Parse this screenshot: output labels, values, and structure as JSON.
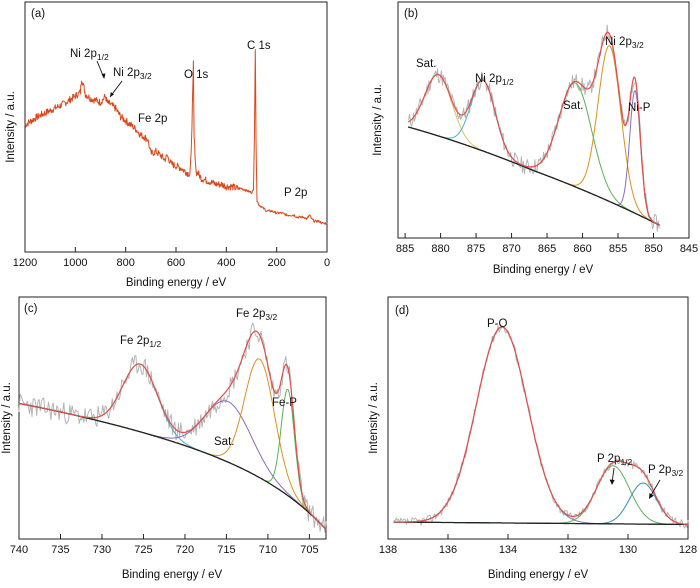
{
  "chart_data": [
    {
      "panel": "(a)",
      "type": "line",
      "xlabel": "Binding energy / eV",
      "ylabel": "Intensity / a.u.",
      "xlim": [
        1200,
        0
      ],
      "ylim": [
        0,
        1
      ],
      "x_reversed": true,
      "y_ticks_shown": false,
      "xticks": [
        1200,
        1000,
        800,
        600,
        400,
        200,
        0
      ],
      "grid": false,
      "series": [
        {
          "color": "#d9481c",
          "x": [
            1200,
            1150,
            1100,
            1050,
            1000,
            980,
            975,
            960,
            940,
            920,
            900,
            880,
            875,
            860,
            840,
            820,
            800,
            780,
            760,
            740,
            725,
            712,
            700,
            680,
            660,
            645,
            635,
            620,
            600,
            580,
            560,
            545,
            540,
            533,
            531,
            528,
            520,
            510,
            500,
            480,
            460,
            440,
            420,
            400,
            380,
            360,
            340,
            320,
            300,
            292,
            288,
            285,
            282,
            278,
            270,
            260,
            240,
            220,
            200,
            180,
            160,
            140,
            130,
            120,
            110,
            100,
            90,
            80,
            70,
            60,
            50,
            40,
            30,
            20,
            10,
            0
          ],
          "y": [
            0.62,
            0.66,
            0.69,
            0.72,
            0.76,
            0.78,
            0.85,
            0.77,
            0.75,
            0.74,
            0.73,
            0.76,
            0.73,
            0.72,
            0.7,
            0.66,
            0.64,
            0.62,
            0.6,
            0.57,
            0.56,
            0.55,
            0.48,
            0.49,
            0.47,
            0.45,
            0.47,
            0.43,
            0.42,
            0.41,
            0.39,
            0.38,
            0.47,
            0.8,
            0.92,
            0.56,
            0.39,
            0.38,
            0.36,
            0.35,
            0.34,
            0.33,
            0.33,
            0.32,
            0.32,
            0.31,
            0.31,
            0.3,
            0.29,
            0.3,
            0.6,
            0.99,
            0.55,
            0.25,
            0.23,
            0.22,
            0.2,
            0.2,
            0.19,
            0.19,
            0.18,
            0.18,
            0.18,
            0.17,
            0.17,
            0.17,
            0.17,
            0.16,
            0.18,
            0.16,
            0.15,
            0.15,
            0.15,
            0.14,
            0.14,
            0.14
          ]
        }
      ],
      "annotations": [
        {
          "label": "Ni 2p",
          "sub": "1/2",
          "x": 1000,
          "y": 0.97
        },
        {
          "label": "Ni 2p",
          "sub": "3/2",
          "x": 808,
          "y": 0.91
        },
        {
          "label": "O 1s",
          "x": 540,
          "y": 0.93
        },
        {
          "label": "C 1s",
          "x": 290,
          "y": 1.07
        },
        {
          "label": "Fe 2p",
          "x": 650,
          "y": 0.64
        },
        {
          "label": "P 2p",
          "x": 110,
          "y": 0.26
        }
      ]
    },
    {
      "panel": "(b)",
      "type": "line",
      "xlabel": "Binding energy / eV",
      "ylabel": "Intensity / a.u.",
      "xlim": [
        886,
        845
      ],
      "ylim": [
        0,
        1
      ],
      "x_reversed": true,
      "y_ticks_shown": false,
      "xticks": [
        885,
        880,
        875,
        870,
        865,
        860,
        855,
        850,
        845
      ],
      "grid": false,
      "peaks": [
        {
          "label": "Sat.",
          "center": 880.3,
          "color": "#d9c35c"
        },
        {
          "label": "Ni 2p",
          "sub": "1/2",
          "center": 874.0,
          "color": "#45b3c9"
        },
        {
          "label": "Sat.",
          "center": 861.0,
          "color": "#59b359"
        },
        {
          "label": "Ni 2p",
          "sub": "3/2",
          "center": 856.2,
          "color": "#d9931c"
        },
        {
          "label": "Ni-P",
          "center": 852.6,
          "color": "#8a6bbf"
        }
      ],
      "envelope_color": "#e0504a",
      "raw_color": "#b4b4b4",
      "background_color": "#222222"
    },
    {
      "panel": "(c)",
      "type": "line",
      "xlabel": "Binding energy / eV",
      "ylabel": "Intensity / a.u.",
      "xlim": [
        740,
        703
      ],
      "ylim": [
        0,
        1
      ],
      "x_reversed": true,
      "y_ticks_shown": false,
      "xticks": [
        740,
        735,
        730,
        725,
        720,
        715,
        710,
        705
      ],
      "grid": false,
      "peaks": [
        {
          "label": "Fe 2p",
          "sub": "1/2",
          "center": 725.4,
          "color": "#45b3c9"
        },
        {
          "label": "Sat.",
          "center": 714.8,
          "color": "#8a6bbf"
        },
        {
          "label": "Fe 2p",
          "sub": "3/2",
          "center": 711.0,
          "color": "#d9931c"
        },
        {
          "label": "Fe-P",
          "center": 707.6,
          "color": "#59b359"
        }
      ],
      "envelope_color": "#e0504a",
      "raw_color": "#b4b4b4",
      "background_color": "#222222"
    },
    {
      "panel": "(d)",
      "type": "line",
      "xlabel": "Binding energy / eV",
      "ylabel": "Intensity / a.u.",
      "xlim": [
        138,
        128
      ],
      "ylim": [
        0,
        1
      ],
      "x_reversed": true,
      "y_ticks_shown": false,
      "xticks": [
        138,
        136,
        134,
        132,
        130,
        128
      ],
      "grid": false,
      "peaks": [
        {
          "label": "P-O",
          "center": 134.2,
          "color": "#8a6bbf"
        },
        {
          "label": "P 2p",
          "sub": "1/2",
          "center": 130.5,
          "color": "#59b359"
        },
        {
          "label": "P 2p",
          "sub": "3/2",
          "center": 129.5,
          "color": "#2f8fb8"
        }
      ],
      "envelope_color": "#e0504a",
      "raw_color": "#b4b4b4",
      "background_color": "#222222"
    }
  ]
}
